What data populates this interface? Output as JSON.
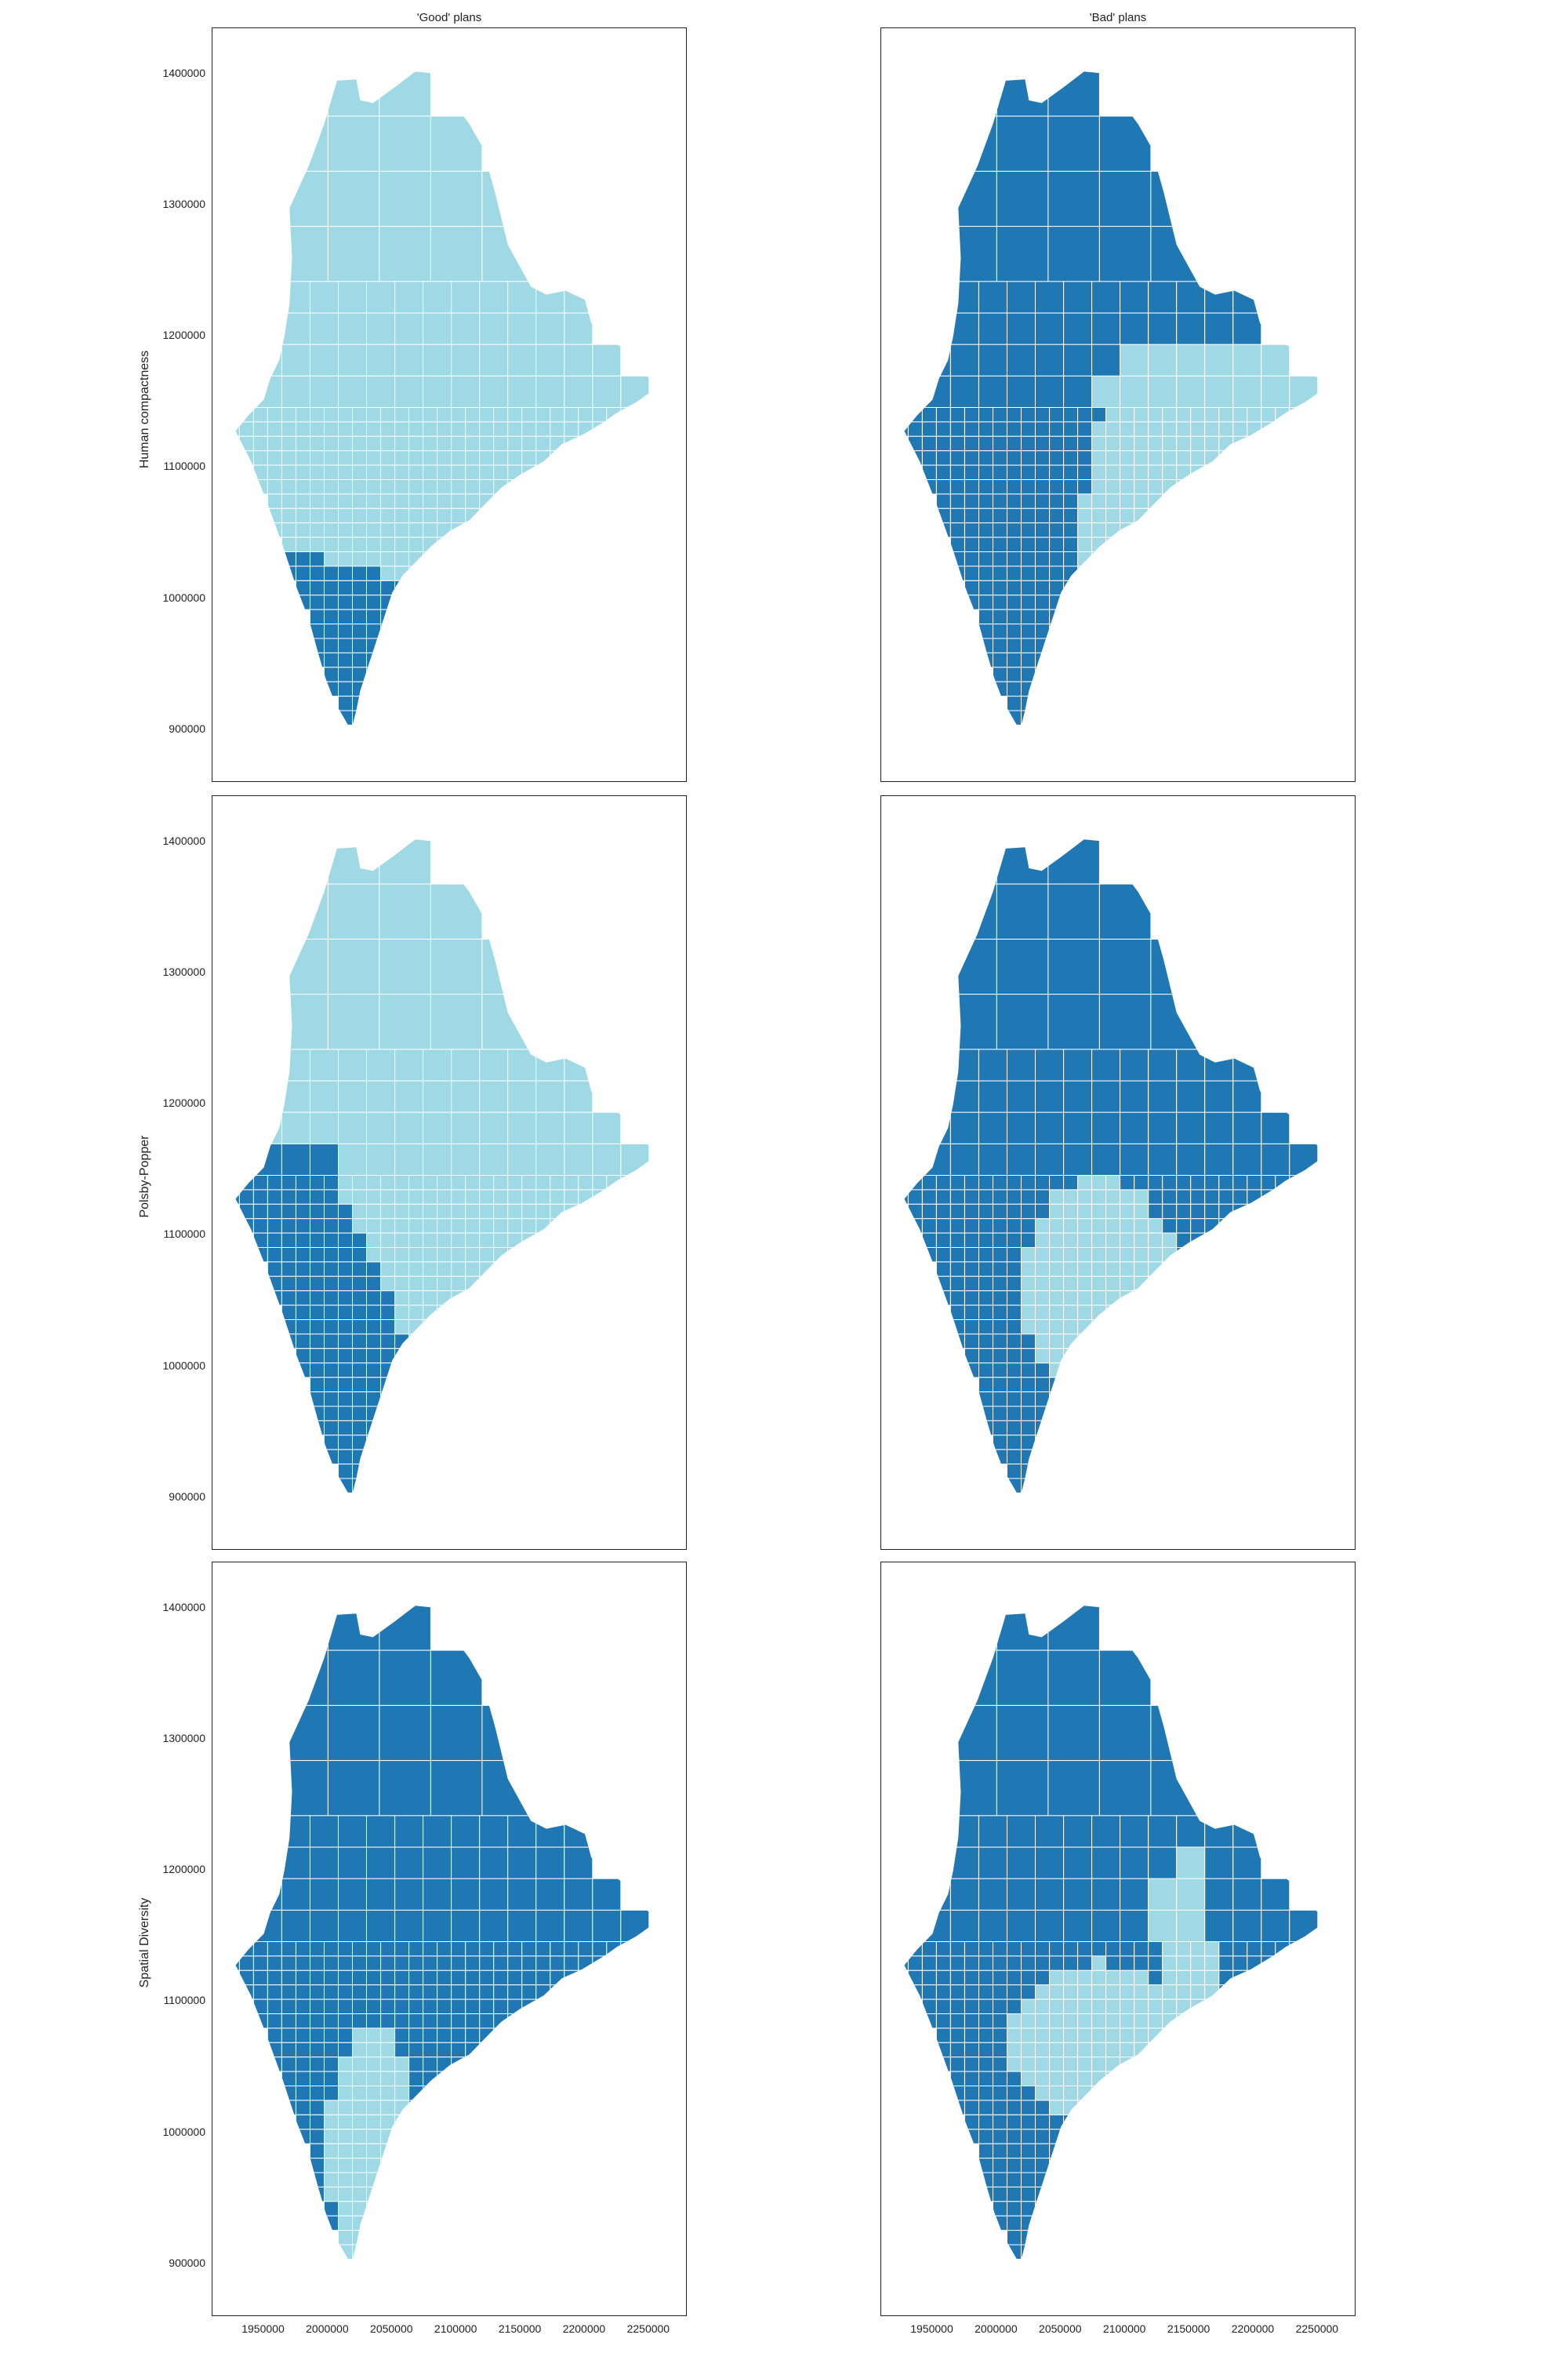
{
  "figure": {
    "column_titles": [
      "'Good' plans",
      "'Bad' plans"
    ],
    "row_labels": [
      "Human compactness",
      "Polsby-Popper",
      "Spatial Diversity"
    ]
  },
  "colors": {
    "district_dark": "#1f77b4",
    "district_light": "#9ed9e5",
    "boundary": "#ffffff"
  },
  "axes": {
    "xlim": [
      1910000,
      2280000
    ],
    "ylim": [
      860000,
      1435000
    ],
    "yticks": [
      "1400000",
      "1300000",
      "1200000",
      "1100000",
      "1000000",
      "900000"
    ],
    "ytick_values": [
      1400000,
      1300000,
      1200000,
      1100000,
      1000000,
      900000
    ],
    "xticks": [
      "1950000",
      "2000000",
      "2050000",
      "2100000",
      "2150000",
      "2200000",
      "2250000"
    ],
    "xtick_values": [
      1950000,
      2000000,
      2050000,
      2100000,
      2150000,
      2200000,
      2250000
    ]
  },
  "chart_data": [
    {
      "type": "choropleth-map",
      "row": "Human compactness",
      "column": "'Good' plans",
      "districts": 2,
      "south_district": "dark",
      "north_district": "light"
    },
    {
      "type": "choropleth-map",
      "row": "Human compactness",
      "column": "'Bad' plans",
      "districts": 2,
      "west_district": "dark",
      "east_coast_district": "light"
    },
    {
      "type": "choropleth-map",
      "row": "Polsby-Popper",
      "column": "'Good' plans",
      "districts": 2,
      "southwest_district": "dark",
      "north_east_district": "light"
    },
    {
      "type": "choropleth-map",
      "row": "Polsby-Popper",
      "column": "'Bad' plans",
      "districts": 2,
      "outer_district": "dark",
      "central_district": "light"
    },
    {
      "type": "choropleth-map",
      "row": "Spatial Diversity",
      "column": "'Good' plans",
      "districts": 2,
      "outer_district": "dark",
      "southern_central_district": "light"
    },
    {
      "type": "choropleth-map",
      "row": "Spatial Diversity",
      "column": "'Bad' plans",
      "districts": 2,
      "outer_district": "dark",
      "central_district": "light"
    }
  ]
}
